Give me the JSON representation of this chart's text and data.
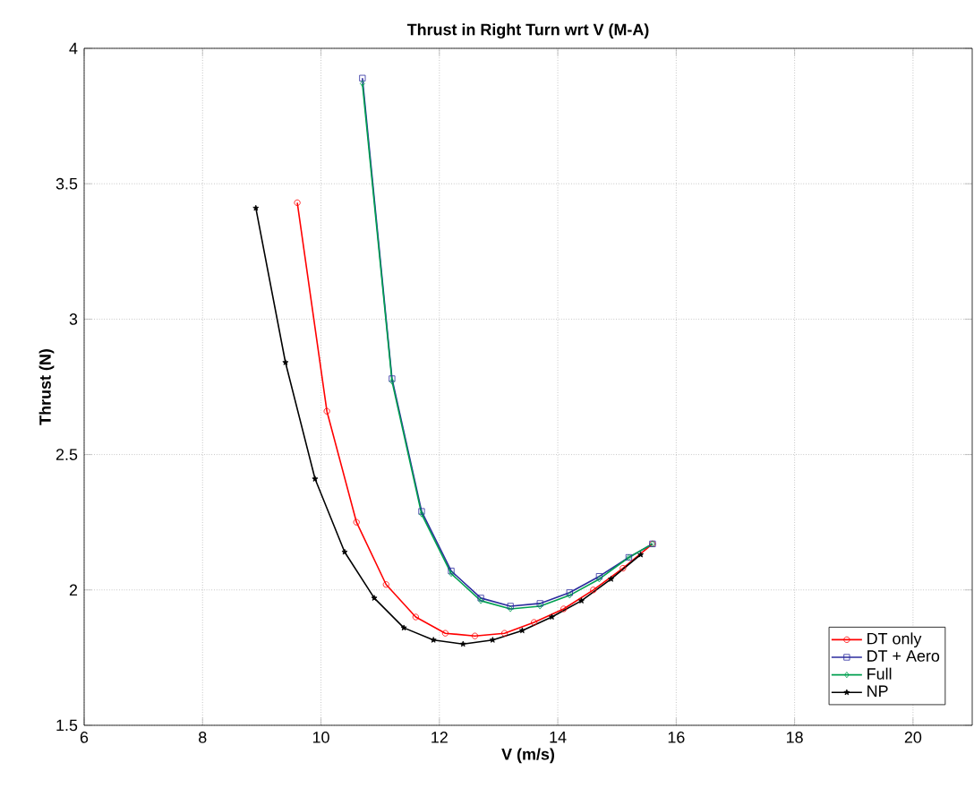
{
  "chart_data": {
    "type": "line",
    "title": "Thrust in Right Turn wrt V (M-A)",
    "xlabel": "V (m/s)",
    "ylabel": "Thrust (N)",
    "xlim": [
      6,
      21
    ],
    "ylim": [
      1.5,
      4
    ],
    "xticks": [
      6,
      8,
      10,
      12,
      14,
      16,
      18,
      20
    ],
    "yticks": [
      1.5,
      2,
      2.5,
      3,
      3.5,
      4
    ],
    "grid": true,
    "legend": "bottom right",
    "line_style": "solid",
    "series": [
      {
        "name": "DT only",
        "color": "#ff0000",
        "marker": "circle",
        "x": [
          9.6,
          10.1,
          10.6,
          11.1,
          11.6,
          12.1,
          12.6,
          13.1,
          13.6,
          14.1,
          14.6,
          15.1,
          15.6
        ],
        "values": [
          3.43,
          2.66,
          2.25,
          2.02,
          1.9,
          1.84,
          1.83,
          1.84,
          1.88,
          1.93,
          2.0,
          2.08,
          2.17
        ]
      },
      {
        "name": "DT + Aero",
        "color": "#2b2b9e",
        "marker": "square",
        "x": [
          10.7,
          11.2,
          11.7,
          12.2,
          12.7,
          13.2,
          13.7,
          14.2,
          14.7,
          15.2,
          15.6
        ],
        "values": [
          3.89,
          2.78,
          2.29,
          2.07,
          1.97,
          1.94,
          1.95,
          1.99,
          2.05,
          2.12,
          2.17
        ]
      },
      {
        "name": "Full",
        "color": "#00a050",
        "marker": "diamond",
        "x": [
          10.7,
          11.2,
          11.7,
          12.2,
          12.7,
          13.2,
          13.7,
          14.2,
          14.7,
          15.2,
          15.6
        ],
        "values": [
          3.87,
          2.77,
          2.28,
          2.06,
          1.96,
          1.93,
          1.94,
          1.98,
          2.04,
          2.12,
          2.17
        ]
      },
      {
        "name": "NP",
        "color": "#000000",
        "marker": "star",
        "x": [
          8.9,
          9.4,
          9.9,
          10.4,
          10.9,
          11.4,
          11.9,
          12.4,
          12.9,
          13.4,
          13.9,
          14.4,
          14.9,
          15.4
        ],
        "values": [
          3.41,
          2.84,
          2.41,
          2.14,
          1.97,
          1.86,
          1.815,
          1.8,
          1.815,
          1.85,
          1.9,
          1.96,
          2.04,
          2.13
        ]
      }
    ]
  }
}
